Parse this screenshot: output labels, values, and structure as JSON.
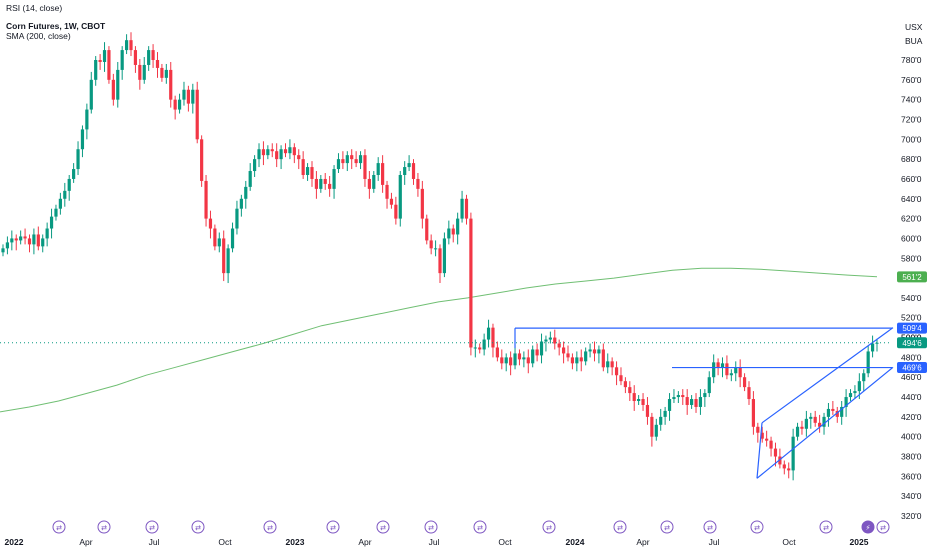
{
  "legend": {
    "rsi": "RSI (14, close)",
    "symbol": "Corn Futures, 1W, CBOT",
    "sma": "SMA (200, close)"
  },
  "axis_units": {
    "currency": "USX",
    "unit": "BUA"
  },
  "colors": {
    "up": "#089981",
    "down": "#f23645",
    "sma": "#4caf50",
    "trendline": "#2962ff",
    "current_price_line": "#089981",
    "event_marker": "#7e57c2",
    "grid": "#f0f3fa"
  },
  "badges": [
    {
      "name": "sma-value-badge",
      "text": "561'2",
      "price": 561.25,
      "color": "#4caf50"
    },
    {
      "name": "last-price-badge",
      "text": "494'6",
      "price": 494.75,
      "color": "#089981"
    },
    {
      "name": "resistance-price-badge",
      "text": "509'4",
      "price": 509.5,
      "color": "#2962ff"
    },
    {
      "name": "support-price-badge",
      "text": "469'6",
      "price": 469.75,
      "color": "#2962ff"
    }
  ],
  "hidden_label_behind_badge": "500'0",
  "event_marker_icons": [
    "arrows-icon",
    "lightning-icon"
  ],
  "chart_data": {
    "type": "candlestick",
    "title": "Corn Futures, 1W, CBOT",
    "x_tick_labels": [
      "2022",
      "Apr",
      "Jul",
      "Oct",
      "2023",
      "Apr",
      "Jul",
      "Oct",
      "2024",
      "Apr",
      "Jul",
      "Oct",
      "2025"
    ],
    "y_tick_labels": [
      "320'0",
      "340'0",
      "360'0",
      "380'0",
      "400'0",
      "420'0",
      "440'0",
      "460'0",
      "480'0",
      "500'0",
      "520'0",
      "540'0",
      "560'0",
      "580'0",
      "600'0",
      "620'0",
      "640'0",
      "660'0",
      "680'0",
      "700'0",
      "720'0",
      "740'0",
      "760'0",
      "780'0"
    ],
    "y_tick_values": [
      320,
      340,
      360,
      380,
      400,
      420,
      440,
      460,
      480,
      500,
      520,
      540,
      560,
      580,
      600,
      620,
      640,
      660,
      680,
      700,
      720,
      740,
      760,
      780
    ],
    "grid": false,
    "weekly_close_approx": [
      590,
      596,
      600,
      598,
      602,
      600,
      594,
      604,
      592,
      600,
      610,
      622,
      630,
      640,
      648,
      660,
      670,
      690,
      710,
      730,
      760,
      780,
      778,
      790,
      760,
      740,
      770,
      790,
      800,
      790,
      775,
      760,
      775,
      790,
      780,
      772,
      762,
      770,
      740,
      730,
      740,
      750,
      736,
      750,
      700,
      658,
      620,
      610,
      592,
      600,
      565,
      590,
      610,
      630,
      640,
      652,
      668,
      680,
      690,
      684,
      690,
      688,
      680,
      690,
      686,
      692,
      684,
      680,
      664,
      672,
      660,
      650,
      660,
      655,
      650,
      670,
      680,
      676,
      684,
      680,
      676,
      684,
      660,
      650,
      664,
      676,
      654,
      640,
      634,
      620,
      664,
      672,
      676,
      660,
      650,
      620,
      598,
      590,
      590,
      565,
      600,
      610,
      604,
      620,
      640,
      620,
      490,
      490,
      488,
      498,
      510,
      490,
      480,
      474,
      480,
      472,
      484,
      478,
      480,
      474,
      488,
      482,
      496,
      498,
      500,
      494,
      490,
      484,
      480,
      474,
      480,
      476,
      486,
      488,
      484,
      488,
      470,
      476,
      470,
      462,
      456,
      450,
      444,
      436,
      438,
      432,
      420,
      400,
      412,
      420,
      426,
      438,
      440,
      442,
      440,
      432,
      438,
      430,
      440,
      444,
      460,
      475,
      470,
      474,
      462,
      464,
      470,
      460,
      450,
      438,
      410,
      404,
      398,
      396,
      388,
      380,
      372,
      368,
      366,
      400,
      410,
      408,
      418,
      420,
      414,
      410,
      420,
      428,
      426,
      420,
      430,
      440,
      444,
      446,
      456,
      464,
      486,
      494,
      494.75
    ],
    "sma200_series": [
      {
        "label": "SMA (200, close)",
        "approx_values": [
          425,
          430,
          436,
          444,
          452,
          462,
          470,
          478,
          486,
          494,
          503,
          512,
          518,
          524,
          530,
          536,
          540,
          545,
          550,
          554,
          557,
          560,
          564,
          568,
          570,
          570,
          569,
          567,
          565,
          563,
          561.25
        ]
      }
    ],
    "horizontal_levels": [
      509.5,
      469.75
    ],
    "last_price": 494.75,
    "sma_value": 561.25
  }
}
